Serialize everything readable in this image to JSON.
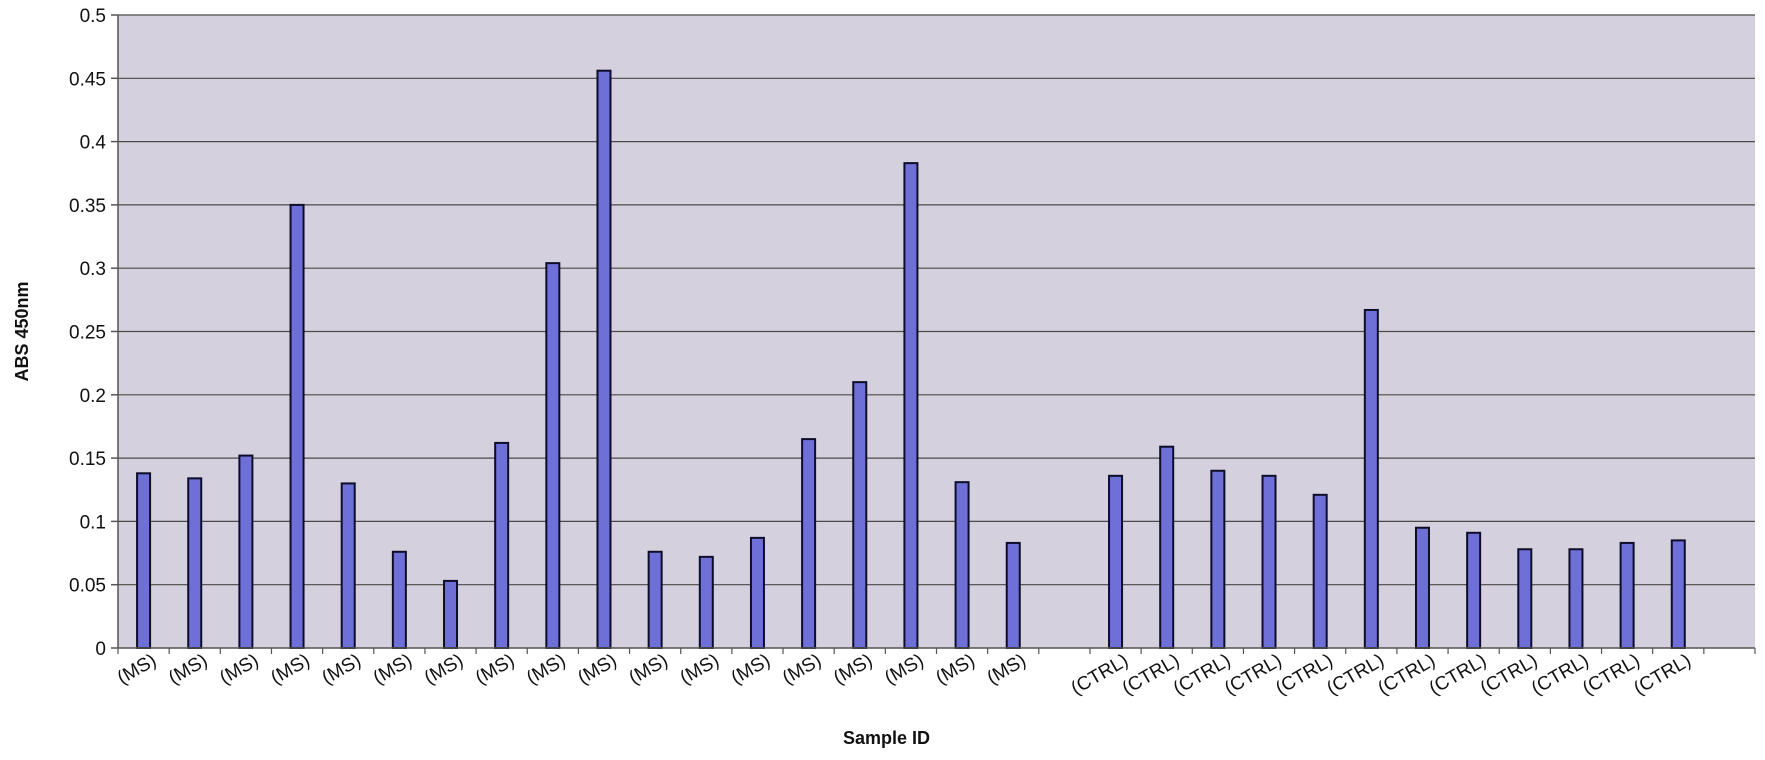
{
  "chart_data": {
    "type": "bar",
    "title": "",
    "xlabel": "Sample ID",
    "ylabel": "ABS 450nm",
    "ylim": [
      0,
      0.5
    ],
    "yticks": [
      0,
      0.05,
      0.1,
      0.15,
      0.2,
      0.25,
      0.3,
      0.35,
      0.4,
      0.45,
      0.5
    ],
    "ytick_labels": [
      "0",
      "0.05",
      "0.1",
      "0.15",
      "0.2",
      "0.25",
      "0.3",
      "0.35",
      "0.4",
      "0.45",
      "0.5"
    ],
    "grid": true,
    "legend": "none",
    "categories": [
      "(MS)",
      "(MS)",
      "(MS)",
      "(MS)",
      "(MS)",
      "(MS)",
      "(MS)",
      "(MS)",
      "(MS)",
      "(MS)",
      "(MS)",
      "(MS)",
      "(MS)",
      "(MS)",
      "(MS)",
      "(MS)",
      "(MS)",
      "(MS)",
      "",
      "(CTRL)",
      "(CTRL)",
      "(CTRL)",
      "(CTRL)",
      "(CTRL)",
      "(CTRL)",
      "(CTRL)",
      "(CTRL)",
      "(CTRL)",
      "(CTRL)",
      "(CTRL)",
      "(CTRL)"
    ],
    "values": [
      0.138,
      0.134,
      0.152,
      0.35,
      0.13,
      0.076,
      0.053,
      0.162,
      0.304,
      0.456,
      0.076,
      0.072,
      0.087,
      0.165,
      0.21,
      0.383,
      0.131,
      0.083,
      null,
      0.136,
      0.159,
      0.14,
      0.136,
      0.121,
      0.267,
      0.095,
      0.091,
      0.078,
      0.078,
      0.083,
      0.085
    ],
    "colors": {
      "bar": "#6f6fd8",
      "bar_edge": "#0d0d2a",
      "plot_bg": "#d5d0de",
      "grid": "#4a4a4a",
      "axis": "#555555"
    }
  }
}
